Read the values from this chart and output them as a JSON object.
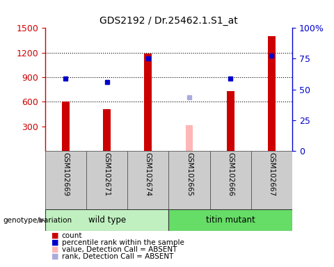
{
  "title": "GDS2192 / Dr.25462.1.S1_at",
  "samples": [
    "GSM102669",
    "GSM102671",
    "GSM102674",
    "GSM102665",
    "GSM102666",
    "GSM102667"
  ],
  "groups": [
    "wild type",
    "wild type",
    "wild type",
    "titin mutant",
    "titin mutant",
    "titin mutant"
  ],
  "group_labels": [
    "wild type",
    "titin mutant"
  ],
  "count_values": [
    600,
    510,
    1190,
    310,
    730,
    1400
  ],
  "rank_values": [
    880,
    840,
    1130,
    null,
    880,
    1160
  ],
  "absent_value_vals": [
    null,
    null,
    null,
    310,
    null,
    null
  ],
  "absent_rank_vals": [
    null,
    null,
    null,
    650,
    null,
    null
  ],
  "detection_absent": [
    false,
    false,
    false,
    true,
    false,
    false
  ],
  "ylim_left": [
    0,
    1500
  ],
  "ylim_right": [
    0,
    100
  ],
  "yticks_left": [
    300,
    600,
    900,
    1200,
    1500
  ],
  "yticks_right": [
    0,
    25,
    50,
    75,
    100
  ],
  "bar_color": "#cc0000",
  "rank_color": "#0000cc",
  "absent_value_color": "#ffb6b6",
  "absent_rank_color": "#aaaadd",
  "bg_color": "#cccccc",
  "panel_bg": "#ffffff",
  "left_axis_color": "#cc0000",
  "right_axis_color": "#0000cc",
  "wt_color": "#c0f0c0",
  "mut_color": "#66dd66"
}
